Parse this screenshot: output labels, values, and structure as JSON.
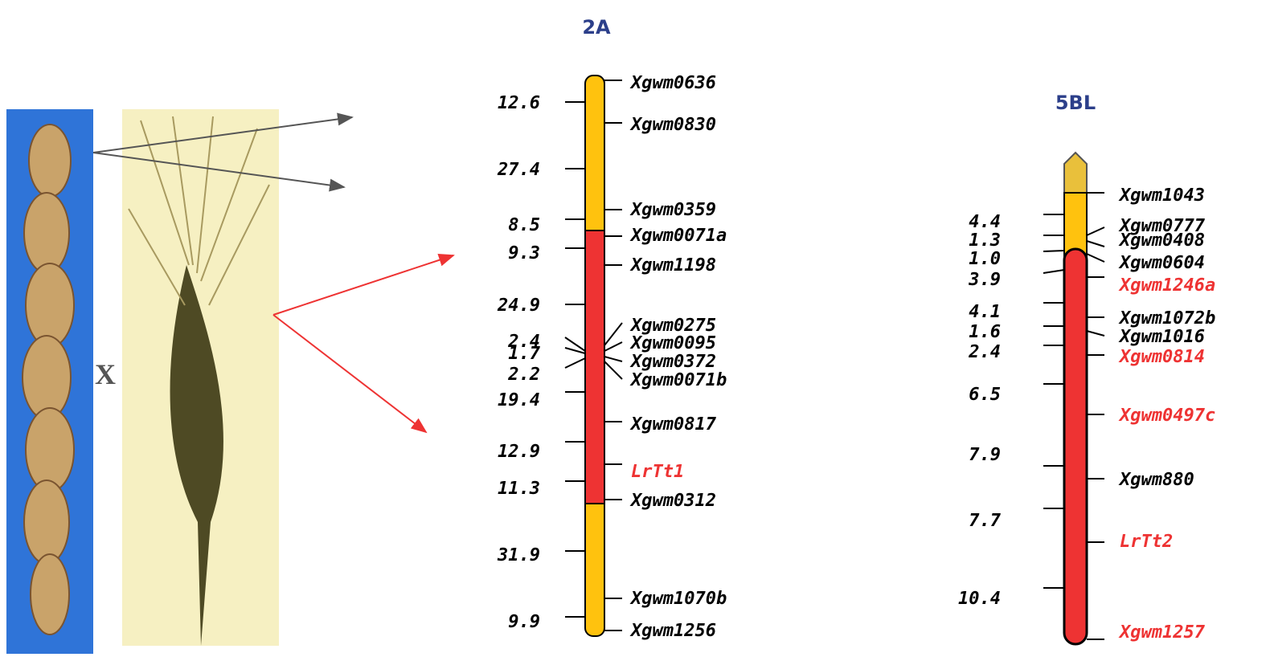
{
  "cross_symbol": "X",
  "chromosomes": [
    {
      "title": "2A",
      "intervals": [
        "12.6",
        "27.4",
        "8.5",
        "9.3",
        "24.9",
        "2.4",
        "1.7",
        "2.2",
        "19.4",
        "12.9",
        "11.3",
        "31.9",
        "9.9"
      ],
      "markers": [
        {
          "name": "Xgwm0636",
          "color": "#000000"
        },
        {
          "name": "Xgwm0830",
          "color": "#000000"
        },
        {
          "name": "Xgwm0359",
          "color": "#000000"
        },
        {
          "name": "Xgwm0071a",
          "color": "#000000"
        },
        {
          "name": "Xgwm1198",
          "color": "#000000"
        },
        {
          "name": "Xgwm0275",
          "color": "#000000"
        },
        {
          "name": "Xgwm0095",
          "color": "#000000"
        },
        {
          "name": "Xgwm0372",
          "color": "#000000"
        },
        {
          "name": "Xgwm0071b",
          "color": "#000000"
        },
        {
          "name": "Xgwm0817",
          "color": "#000000"
        },
        {
          "name": "LrTt1",
          "color": "#ee3333"
        },
        {
          "name": "Xgwm0312",
          "color": "#000000"
        },
        {
          "name": "Xgwm1070b",
          "color": "#000000"
        },
        {
          "name": "Xgwm1256",
          "color": "#000000"
        }
      ]
    },
    {
      "title": "5BL",
      "intervals": [
        "4.4",
        "1.3",
        "1.0",
        "3.9",
        "4.1",
        "1.6",
        "2.4",
        "6.5",
        "7.9",
        "7.7",
        "10.4"
      ],
      "markers": [
        {
          "name": "Xgwm1043",
          "color": "#000000"
        },
        {
          "name": "Xgwm0777",
          "color": "#000000"
        },
        {
          "name": "Xgwm0408",
          "color": "#000000"
        },
        {
          "name": "Xgwm0604",
          "color": "#000000"
        },
        {
          "name": "Xgwm1246a",
          "color": "#ee3333"
        },
        {
          "name": "Xgwm1072b",
          "color": "#000000"
        },
        {
          "name": "Xgwm1016",
          "color": "#000000"
        },
        {
          "name": "Xgwm0814",
          "color": "#ee3333"
        },
        {
          "name": "Xgwm0497c",
          "color": "#ee3333"
        },
        {
          "name": "Xgwm880",
          "color": "#000000"
        },
        {
          "name": "LrTt2",
          "color": "#ee3333"
        },
        {
          "name": "Xgwm1257",
          "color": "#ee3333"
        }
      ]
    }
  ]
}
